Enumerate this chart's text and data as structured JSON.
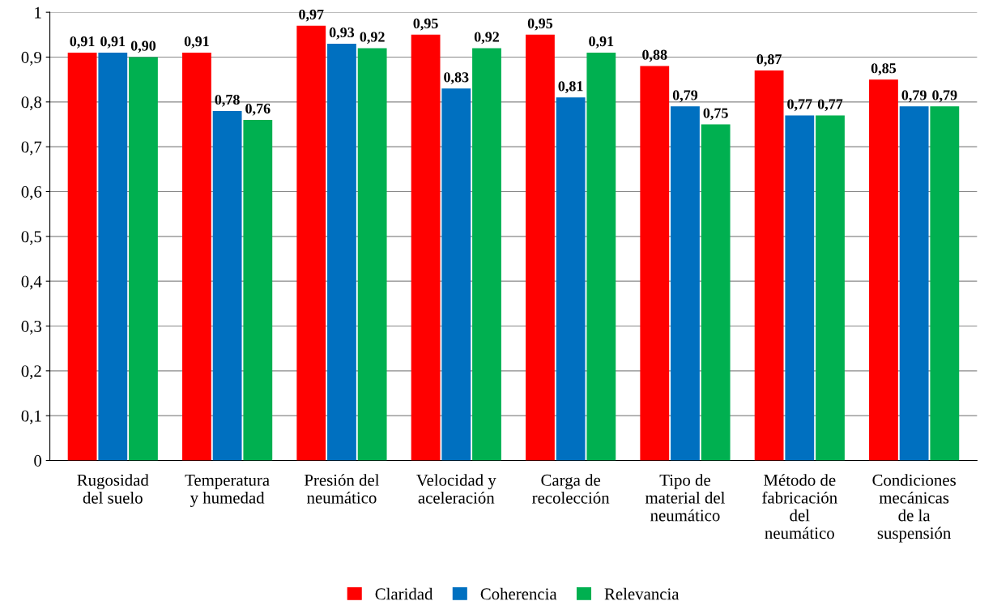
{
  "chart_data": {
    "type": "bar",
    "categories": [
      "Rugosidad\ndel suelo",
      "Temperatura\ny humedad",
      "Presión del\nneumático",
      "Velocidad y\naceleración",
      "Carga de\nrecolección",
      "Tipo de\nmaterial del\nneumático",
      "Método de\nfabricación\ndel\nneumático",
      "Condiciones\nmecánicas\nde la\nsuspensión"
    ],
    "series": [
      {
        "name": "Claridad",
        "color": "#ff0000",
        "values": [
          0.91,
          0.91,
          0.97,
          0.95,
          0.95,
          0.88,
          0.87,
          0.85
        ],
        "value_labels": [
          "0,91",
          "0,91",
          "0,97",
          "0,95",
          "0,95",
          "0,88",
          "0,87",
          "0,85"
        ]
      },
      {
        "name": "Coherencia",
        "color": "#0070c0",
        "values": [
          0.91,
          0.78,
          0.93,
          0.83,
          0.81,
          0.79,
          0.77,
          0.79
        ],
        "value_labels": [
          "0,91",
          "0,78",
          "0,93",
          "0,83",
          "0,81",
          "0,79",
          "0,77",
          "0,79"
        ]
      },
      {
        "name": "Relevancia",
        "color": "#00b050",
        "values": [
          0.9,
          0.76,
          0.92,
          0.92,
          0.91,
          0.75,
          0.77,
          0.79
        ],
        "value_labels": [
          "0,90",
          "0,76",
          "0,92",
          "0,92",
          "0,91",
          "0,75",
          "0,77",
          "0,79"
        ]
      }
    ],
    "ylim": [
      0,
      1
    ],
    "yticks": [
      0,
      {
        "value": 0.1,
        "label": "0,1"
      },
      {
        "value": 0.2,
        "label": "0,2"
      },
      {
        "value": 0.3,
        "label": "0,3"
      },
      {
        "value": 0.4,
        "label": "0,4"
      },
      {
        "value": 0.5,
        "label": "0,5"
      },
      {
        "value": 0.6,
        "label": "0,6"
      },
      {
        "value": 0.7,
        "label": "0,7"
      },
      {
        "value": 0.8,
        "label": "0,8"
      },
      {
        "value": 0.9,
        "label": "0,9"
      },
      1
    ],
    "grid": "y",
    "legend": "bottom"
  }
}
